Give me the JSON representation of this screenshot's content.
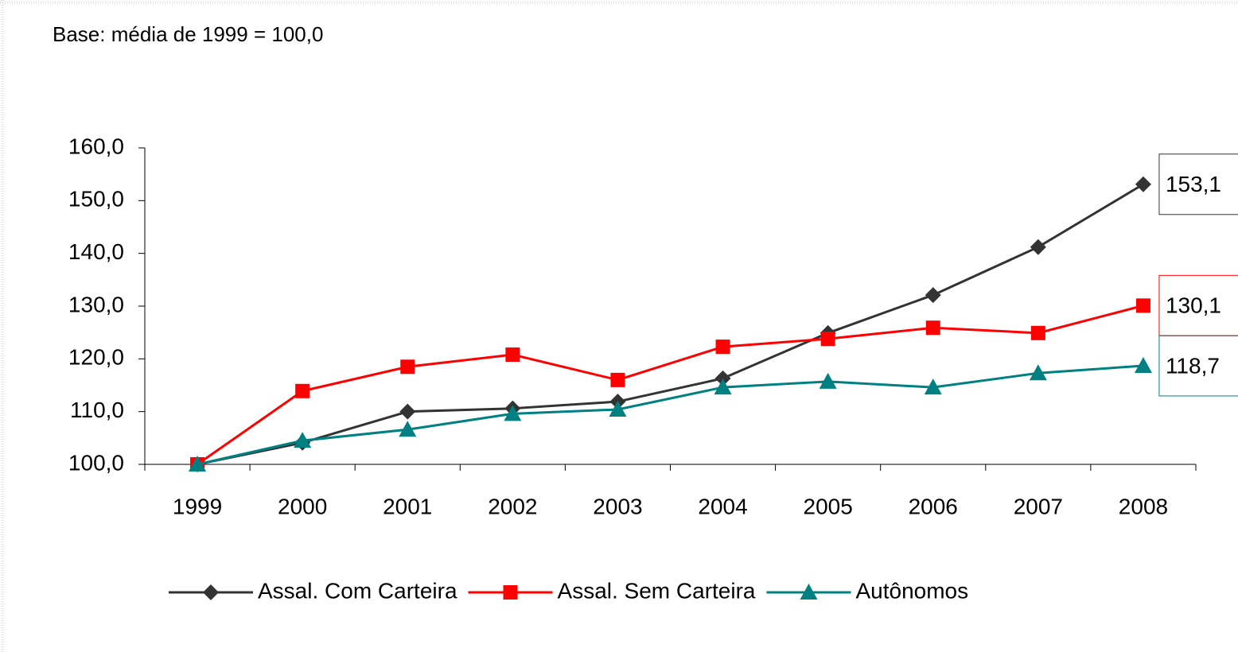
{
  "chart_data": {
    "type": "line",
    "subtitle": "Base: média de 1999 = 100,0",
    "categories": [
      "1999",
      "2000",
      "2001",
      "2002",
      "2003",
      "2004",
      "2005",
      "2006",
      "2007",
      "2008"
    ],
    "series": [
      {
        "name": "Assal. Com Carteira",
        "color": "#333333",
        "marker": "diamond",
        "values": [
          100.0,
          104.1,
          110.0,
          110.6,
          111.9,
          116.3,
          124.9,
          132.1,
          141.2,
          153.1
        ],
        "value_labels": [
          null,
          null,
          null,
          null,
          null,
          null,
          null,
          null,
          null,
          "153,1"
        ]
      },
      {
        "name": "Assal. Sem Carteira",
        "color": "#ff0000",
        "marker": "square",
        "values": [
          100.0,
          113.9,
          118.5,
          120.8,
          116.0,
          122.3,
          123.8,
          125.9,
          124.9,
          130.1
        ],
        "value_labels": [
          null,
          null,
          null,
          null,
          null,
          null,
          null,
          null,
          null,
          "130,1"
        ]
      },
      {
        "name": "Autônomos",
        "color": "#008080",
        "marker": "triangle",
        "values": [
          100.0,
          104.5,
          106.6,
          109.6,
          110.4,
          114.6,
          115.7,
          114.6,
          117.3,
          118.7
        ],
        "value_labels": [
          null,
          null,
          null,
          null,
          null,
          null,
          null,
          null,
          null,
          "118,7"
        ]
      }
    ],
    "ylim": [
      100,
      160
    ],
    "yticks": [
      {
        "value": 100,
        "label": "100,0"
      },
      {
        "value": 110,
        "label": "110,0"
      },
      {
        "value": 120,
        "label": "120,0"
      },
      {
        "value": 130,
        "label": "130,0"
      },
      {
        "value": 140,
        "label": "140,0"
      },
      {
        "value": 150,
        "label": "150,0"
      },
      {
        "value": 160,
        "label": "160,0"
      }
    ],
    "grid": false,
    "legend": "bottom"
  }
}
